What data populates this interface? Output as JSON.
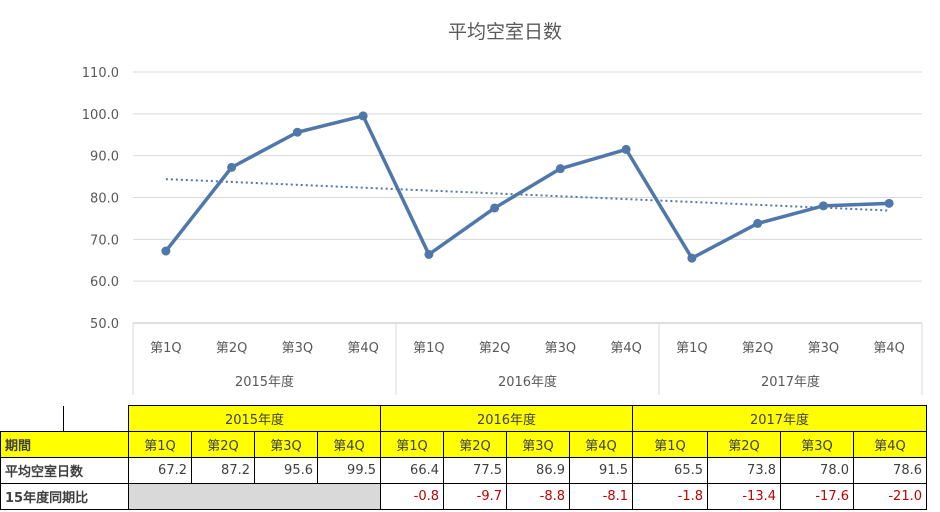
{
  "chart_data": {
    "type": "line",
    "title": "平均空室日数",
    "y_ticks": [
      "110.0",
      "100.0",
      "90.0",
      "80.0",
      "70.0",
      "60.0",
      "50.0"
    ],
    "ylim": [
      50,
      110
    ],
    "groups": [
      {
        "label": "2015年度",
        "categories": [
          "第1Q",
          "第2Q",
          "第3Q",
          "第4Q"
        ]
      },
      {
        "label": "2016年度",
        "categories": [
          "第1Q",
          "第2Q",
          "第3Q",
          "第4Q"
        ]
      },
      {
        "label": "2017年度",
        "categories": [
          "第1Q",
          "第2Q",
          "第3Q",
          "第4Q"
        ]
      }
    ],
    "series": [
      {
        "values": [
          67.2,
          87.2,
          95.6,
          99.5,
          66.4,
          77.5,
          86.9,
          91.5,
          65.5,
          73.8,
          78.0,
          78.6
        ],
        "color": "#4f77aa"
      }
    ],
    "trendline": {
      "style": "dotted",
      "color": "#4f77aa"
    },
    "grid": true
  },
  "table": {
    "years": [
      "2015年度",
      "2016年度",
      "2017年度"
    ],
    "period_label": "期間",
    "quarters": [
      "第1Q",
      "第2Q",
      "第3Q",
      "第4Q",
      "第1Q",
      "第2Q",
      "第3Q",
      "第4Q",
      "第1Q",
      "第2Q",
      "第3Q",
      "第4Q"
    ],
    "row1_label": "平均空室日数",
    "row1": [
      "67.2",
      "87.2",
      "95.6",
      "99.5",
      "66.4",
      "77.5",
      "86.9",
      "91.5",
      "65.5",
      "73.8",
      "78.0",
      "78.6"
    ],
    "row2_label": "15年度同期比",
    "row2": [
      "-0.8",
      "-9.7",
      "-8.8",
      "-8.1",
      "-1.8",
      "-13.4",
      "-17.6",
      "-21.0"
    ]
  }
}
